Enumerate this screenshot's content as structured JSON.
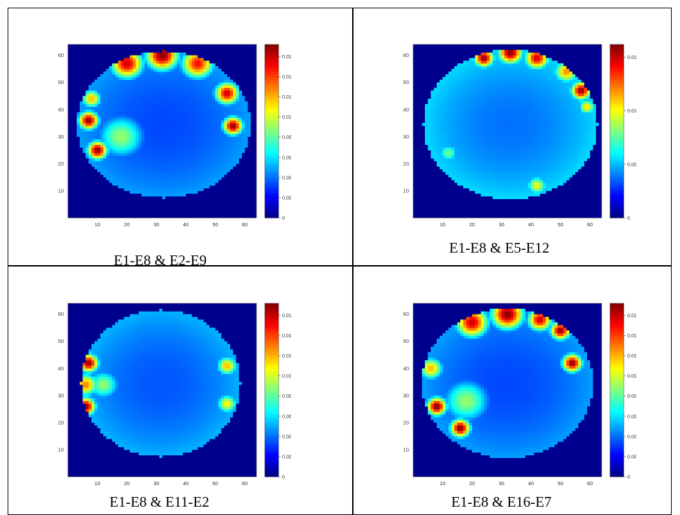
{
  "panels": [
    {
      "caption": "E1-E8 & E2-E9",
      "chart_data": {
        "type": "heatmap",
        "title": "",
        "xlabel": "",
        "ylabel": "",
        "xlim": [
          0,
          64
        ],
        "ylim": [
          0,
          64
        ],
        "x_ticks": [
          10,
          20,
          30,
          40,
          50,
          60
        ],
        "y_ticks": [
          10,
          20,
          30,
          40,
          50,
          60
        ],
        "colorbar": {
          "min": 0,
          "max": 0.0172,
          "ticks": [
            "0",
            "0.002",
            "0.004",
            "0.006",
            "0.008",
            "0.01",
            "0.012",
            "0.014",
            "0.016"
          ],
          "tick_values": [
            0,
            0.002,
            0.004,
            0.006,
            0.008,
            0.01,
            0.012,
            0.014,
            0.016
          ]
        },
        "colormap": "jet",
        "background_color": "#00008f",
        "grid_size": 64,
        "domain": {
          "shape": "ellipse",
          "cx": 32.5,
          "cy": 34.5,
          "rx": 29.5,
          "ry": 27
        },
        "hotspots": [
          {
            "x": 32,
            "y": 60,
            "value": 0.0172,
            "spread": 4
          },
          {
            "x": 20,
            "y": 57,
            "value": 0.016,
            "spread": 4
          },
          {
            "x": 44,
            "y": 57,
            "value": 0.015,
            "spread": 4
          },
          {
            "x": 54,
            "y": 46,
            "value": 0.016,
            "spread": 3
          },
          {
            "x": 56,
            "y": 34,
            "value": 0.017,
            "spread": 2.5
          },
          {
            "x": 7,
            "y": 36,
            "value": 0.017,
            "spread": 2.5
          },
          {
            "x": 10,
            "y": 25,
            "value": 0.0172,
            "spread": 2.5
          },
          {
            "x": 8,
            "y": 44,
            "value": 0.012,
            "spread": 2.5
          },
          {
            "x": 18,
            "y": 30,
            "value": 0.009,
            "spread": 6
          }
        ],
        "base_value": 0.0042
      }
    },
    {
      "caption": "E1-E8 & E5-E12",
      "chart_data": {
        "type": "heatmap",
        "title": "",
        "xlabel": "",
        "ylabel": "",
        "xlim": [
          0,
          64
        ],
        "ylim": [
          0,
          64
        ],
        "x_ticks": [
          10,
          20,
          30,
          40,
          50,
          60
        ],
        "y_ticks": [
          10,
          20,
          30,
          40,
          50,
          60
        ],
        "colorbar": {
          "min": 0,
          "max": 0.0162,
          "ticks": [
            "0",
            "0.005",
            "0.01",
            "0.015"
          ],
          "tick_values": [
            0,
            0.005,
            0.01,
            0.015
          ]
        },
        "colormap": "jet",
        "background_color": "#00008f",
        "grid_size": 64,
        "domain": {
          "shape": "ellipse",
          "cx": 33,
          "cy": 34.5,
          "rx": 29.5,
          "ry": 27.5
        },
        "hotspots": [
          {
            "x": 33,
            "y": 61,
            "value": 0.0162,
            "spread": 3
          },
          {
            "x": 24,
            "y": 59,
            "value": 0.016,
            "spread": 2.5
          },
          {
            "x": 42,
            "y": 59,
            "value": 0.015,
            "spread": 3
          },
          {
            "x": 52,
            "y": 54,
            "value": 0.012,
            "spread": 3
          },
          {
            "x": 57,
            "y": 47,
            "value": 0.016,
            "spread": 2.5
          },
          {
            "x": 59,
            "y": 41,
            "value": 0.011,
            "spread": 2
          },
          {
            "x": 12,
            "y": 24,
            "value": 0.008,
            "spread": 2.5
          },
          {
            "x": 42,
            "y": 12,
            "value": 0.01,
            "spread": 2.5
          }
        ],
        "base_value": 0.0048
      }
    },
    {
      "caption": "E1-E8 & E11-E2",
      "chart_data": {
        "type": "heatmap",
        "title": "",
        "xlabel": "",
        "ylabel": "",
        "xlim": [
          0,
          64
        ],
        "ylim": [
          0,
          64
        ],
        "x_ticks": [
          10,
          20,
          30,
          40,
          50,
          60
        ],
        "y_ticks": [
          10,
          20,
          30,
          40,
          50,
          60
        ],
        "colorbar": {
          "min": 0,
          "max": 0.0172,
          "ticks": [
            "0",
            "0.002",
            "0.004",
            "0.006",
            "0.008",
            "0.01",
            "0.012",
            "0.014",
            "0.016"
          ],
          "tick_values": [
            0,
            0.002,
            0.004,
            0.006,
            0.008,
            0.01,
            0.012,
            0.014,
            0.016
          ]
        },
        "colormap": "jet",
        "background_color": "#00008f",
        "grid_size": 64,
        "domain": {
          "shape": "ellipse",
          "cx": 31.5,
          "cy": 34.5,
          "rx": 27,
          "ry": 27
        },
        "hotspots": [
          {
            "x": 7,
            "y": 42,
            "value": 0.017,
            "spread": 2.5
          },
          {
            "x": 6,
            "y": 26,
            "value": 0.0172,
            "spread": 2.5
          },
          {
            "x": 6,
            "y": 34,
            "value": 0.013,
            "spread": 3
          },
          {
            "x": 54,
            "y": 41,
            "value": 0.012,
            "spread": 2.5
          },
          {
            "x": 54,
            "y": 27,
            "value": 0.011,
            "spread": 2.5
          },
          {
            "x": 12,
            "y": 34,
            "value": 0.009,
            "spread": 4
          }
        ],
        "base_value": 0.0045
      }
    },
    {
      "caption": "E1-E8 & E16-E7",
      "chart_data": {
        "type": "heatmap",
        "title": "",
        "xlabel": "",
        "ylabel": "",
        "xlim": [
          0,
          64
        ],
        "ylim": [
          0,
          64
        ],
        "x_ticks": [
          10,
          20,
          30,
          40,
          50,
          60
        ],
        "y_ticks": [
          10,
          20,
          30,
          40,
          50,
          60
        ],
        "colorbar": {
          "min": 0,
          "max": 0.0172,
          "ticks": [
            "0",
            "0.002",
            "0.004",
            "0.006",
            "0.008",
            "0.01",
            "0.012",
            "0.014",
            "0.016"
          ],
          "tick_values": [
            0,
            0.002,
            0.004,
            0.006,
            0.008,
            0.01,
            0.012,
            0.014,
            0.016
          ]
        },
        "colormap": "jet",
        "background_color": "#00008f",
        "grid_size": 64,
        "domain": {
          "shape": "ellipse",
          "cx": 32,
          "cy": 34.5,
          "rx": 29,
          "ry": 27.5
        },
        "hotspots": [
          {
            "x": 32,
            "y": 60,
            "value": 0.0172,
            "spread": 4
          },
          {
            "x": 20,
            "y": 57,
            "value": 0.016,
            "spread": 4
          },
          {
            "x": 43,
            "y": 58,
            "value": 0.016,
            "spread": 3
          },
          {
            "x": 50,
            "y": 54,
            "value": 0.017,
            "spread": 2.5
          },
          {
            "x": 54,
            "y": 42,
            "value": 0.017,
            "spread": 2.5
          },
          {
            "x": 8,
            "y": 26,
            "value": 0.0172,
            "spread": 2.5
          },
          {
            "x": 16,
            "y": 18,
            "value": 0.0172,
            "spread": 2.5
          },
          {
            "x": 6,
            "y": 40,
            "value": 0.012,
            "spread": 3
          },
          {
            "x": 18,
            "y": 28,
            "value": 0.009,
            "spread": 6
          }
        ],
        "base_value": 0.0042
      }
    }
  ]
}
